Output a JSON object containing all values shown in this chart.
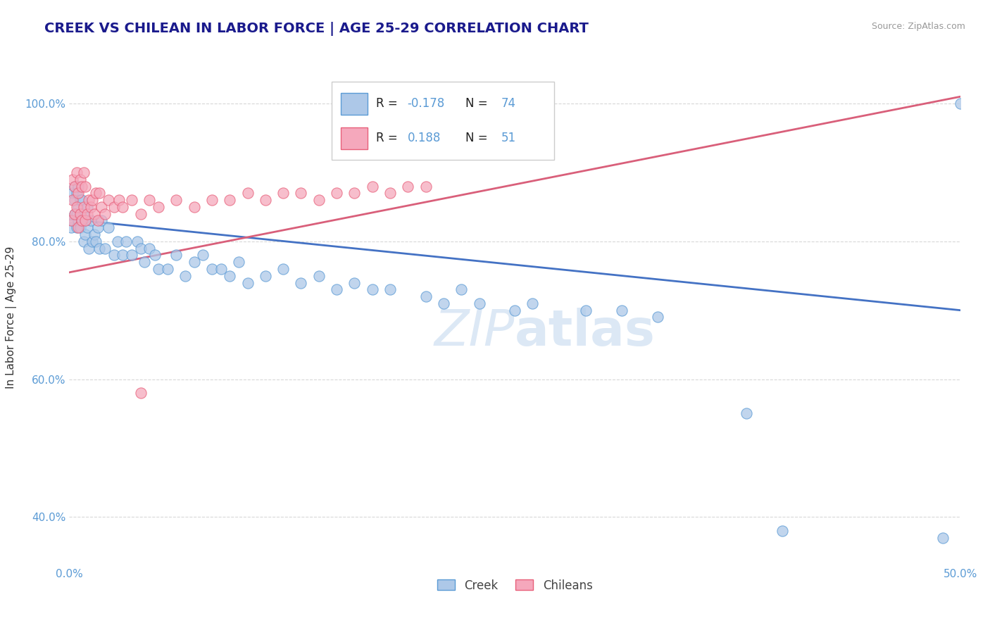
{
  "title": "CREEK VS CHILEAN IN LABOR FORCE | AGE 25-29 CORRELATION CHART",
  "source": "Source: ZipAtlas.com",
  "ylabel": "In Labor Force | Age 25-29",
  "xlim": [
    0.0,
    0.5
  ],
  "ylim": [
    0.33,
    1.05
  ],
  "xticks": [
    0.0,
    0.1,
    0.2,
    0.3,
    0.4,
    0.5
  ],
  "xticklabels": [
    "0.0%",
    "",
    "",
    "",
    "",
    "50.0%"
  ],
  "yticks": [
    0.4,
    0.6,
    0.8,
    1.0
  ],
  "yticklabels": [
    "40.0%",
    "60.0%",
    "80.0%",
    "100.0%"
  ],
  "creek_color": "#adc8e8",
  "chilean_color": "#f5a8bc",
  "creek_edge_color": "#5b9bd5",
  "chilean_edge_color": "#e8607a",
  "creek_line_color": "#4472c4",
  "chilean_line_color": "#d95f7a",
  "creek_R": -0.178,
  "creek_N": 74,
  "chilean_R": 0.188,
  "chilean_N": 51,
  "creek_scatter_x": [
    0.001,
    0.002,
    0.002,
    0.003,
    0.003,
    0.003,
    0.004,
    0.004,
    0.004,
    0.005,
    0.005,
    0.005,
    0.006,
    0.006,
    0.007,
    0.007,
    0.008,
    0.008,
    0.009,
    0.009,
    0.01,
    0.01,
    0.011,
    0.012,
    0.013,
    0.014,
    0.015,
    0.016,
    0.017,
    0.018,
    0.02,
    0.022,
    0.025,
    0.027,
    0.03,
    0.032,
    0.035,
    0.038,
    0.04,
    0.042,
    0.045,
    0.048,
    0.05,
    0.055,
    0.06,
    0.065,
    0.07,
    0.075,
    0.08,
    0.085,
    0.09,
    0.095,
    0.1,
    0.11,
    0.12,
    0.13,
    0.14,
    0.15,
    0.16,
    0.17,
    0.18,
    0.2,
    0.21,
    0.22,
    0.23,
    0.25,
    0.26,
    0.29,
    0.31,
    0.33,
    0.38,
    0.4,
    0.49,
    0.5
  ],
  "creek_scatter_y": [
    0.82,
    0.83,
    0.87,
    0.84,
    0.86,
    0.88,
    0.82,
    0.84,
    0.87,
    0.83,
    0.85,
    0.88,
    0.82,
    0.86,
    0.83,
    0.86,
    0.8,
    0.84,
    0.81,
    0.83,
    0.82,
    0.85,
    0.79,
    0.83,
    0.8,
    0.81,
    0.8,
    0.82,
    0.79,
    0.83,
    0.79,
    0.82,
    0.78,
    0.8,
    0.78,
    0.8,
    0.78,
    0.8,
    0.79,
    0.77,
    0.79,
    0.78,
    0.76,
    0.76,
    0.78,
    0.75,
    0.77,
    0.78,
    0.76,
    0.76,
    0.75,
    0.77,
    0.74,
    0.75,
    0.76,
    0.74,
    0.75,
    0.73,
    0.74,
    0.73,
    0.73,
    0.72,
    0.71,
    0.73,
    0.71,
    0.7,
    0.71,
    0.7,
    0.7,
    0.69,
    0.55,
    0.38,
    0.37,
    1.0
  ],
  "chilean_scatter_x": [
    0.001,
    0.002,
    0.002,
    0.003,
    0.003,
    0.004,
    0.004,
    0.005,
    0.005,
    0.006,
    0.006,
    0.007,
    0.007,
    0.008,
    0.008,
    0.009,
    0.009,
    0.01,
    0.011,
    0.012,
    0.013,
    0.014,
    0.015,
    0.016,
    0.017,
    0.018,
    0.02,
    0.022,
    0.025,
    0.028,
    0.03,
    0.035,
    0.04,
    0.045,
    0.05,
    0.06,
    0.07,
    0.08,
    0.09,
    0.1,
    0.11,
    0.12,
    0.13,
    0.14,
    0.15,
    0.16,
    0.17,
    0.18,
    0.19,
    0.2,
    0.04
  ],
  "chilean_scatter_y": [
    0.83,
    0.86,
    0.89,
    0.84,
    0.88,
    0.85,
    0.9,
    0.82,
    0.87,
    0.84,
    0.89,
    0.83,
    0.88,
    0.85,
    0.9,
    0.83,
    0.88,
    0.84,
    0.86,
    0.85,
    0.86,
    0.84,
    0.87,
    0.83,
    0.87,
    0.85,
    0.84,
    0.86,
    0.85,
    0.86,
    0.85,
    0.86,
    0.84,
    0.86,
    0.85,
    0.86,
    0.85,
    0.86,
    0.86,
    0.87,
    0.86,
    0.87,
    0.87,
    0.86,
    0.87,
    0.87,
    0.88,
    0.87,
    0.88,
    0.88,
    0.58
  ],
  "background_color": "#ffffff",
  "grid_color": "#d8d8d8",
  "title_color": "#1a1a8c",
  "tick_color": "#5b9bd5",
  "ylabel_color": "#333333",
  "watermark_color": "#dce8f5",
  "legend_creek_R": "-0.178",
  "legend_creek_N": "74",
  "legend_chilean_R": "0.188",
  "legend_chilean_N": "51"
}
